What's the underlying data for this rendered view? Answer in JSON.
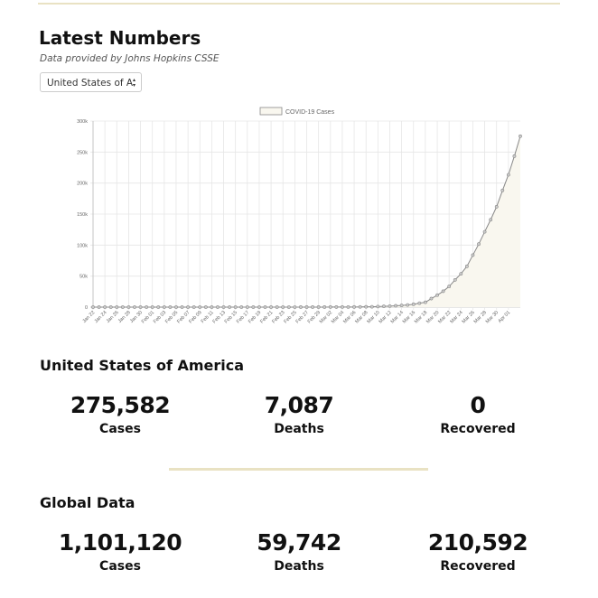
{
  "header": {
    "title": "Latest Numbers",
    "subtitle": "Data provided by Johns Hopkins CSSE"
  },
  "country_select": "United States of A",
  "chart_data": {
    "type": "line",
    "categories": [
      "Jan 22",
      null,
      "Jan 24",
      null,
      "Jan 26",
      null,
      "Jan 28",
      null,
      "Jan 30",
      null,
      "Feb 01",
      null,
      "Feb 03",
      null,
      "Feb 05",
      null,
      "Feb 07",
      null,
      "Feb 09",
      null,
      "Feb 11",
      null,
      "Feb 13",
      null,
      "Feb 15",
      null,
      "Feb 17",
      null,
      "Feb 19",
      null,
      "Feb 21",
      null,
      "Feb 23",
      null,
      "Feb 25",
      null,
      "Feb 27",
      null,
      "Feb 29",
      null,
      "Mar 02",
      null,
      "Mar 04",
      null,
      "Mar 06",
      null,
      "Mar 08",
      null,
      "Mar 10",
      null,
      "Mar 12",
      null,
      "Mar 14",
      null,
      "Mar 16",
      null,
      "Mar 18",
      null,
      "Mar 20",
      null,
      "Mar 22",
      null,
      "Mar 24",
      null,
      "Mar 26",
      null,
      "Mar 28",
      null,
      "Mar 30",
      null,
      "Apr 01",
      null,
      null
    ],
    "series": [
      {
        "name": "COVID-19 Cases",
        "color": "#888888",
        "fill": "#f9f7ef",
        "values": [
          1,
          1,
          2,
          2,
          5,
          5,
          5,
          5,
          5,
          7,
          8,
          8,
          11,
          11,
          11,
          11,
          11,
          11,
          11,
          11,
          12,
          12,
          13,
          13,
          13,
          13,
          13,
          13,
          13,
          13,
          15,
          15,
          15,
          51,
          51,
          57,
          58,
          60,
          68,
          74,
          98,
          118,
          149,
          217,
          262,
          402,
          518,
          583,
          959,
          1281,
          1663,
          2179,
          2727,
          3499,
          4632,
          6421,
          7783,
          13747,
          19273,
          25600,
          33276,
          43847,
          53740,
          65778,
          83836,
          101657,
          121465,
          140909,
          161831,
          188172,
          213372,
          243453,
          275582
        ]
      }
    ],
    "ylim": [
      0,
      300000
    ],
    "yticks": [
      0,
      {
        "value": 50000,
        "label": "50k"
      },
      {
        "value": 100000,
        "label": "100k"
      },
      {
        "value": 150000,
        "label": "150k"
      },
      {
        "value": 200000,
        "label": "200k"
      },
      {
        "value": 250000,
        "label": "250k"
      },
      {
        "value": 300000,
        "label": "300k"
      }
    ],
    "grid": true
  },
  "country": {
    "name": "United States of America",
    "stats": [
      {
        "value": "275,582",
        "label": "Cases"
      },
      {
        "value": "7,087",
        "label": "Deaths"
      },
      {
        "value": "0",
        "label": "Recovered"
      }
    ]
  },
  "global": {
    "name": "Global Data",
    "stats": [
      {
        "value": "1,101,120",
        "label": "Cases"
      },
      {
        "value": "59,742",
        "label": "Deaths"
      },
      {
        "value": "210,592",
        "label": "Recovered"
      }
    ]
  }
}
